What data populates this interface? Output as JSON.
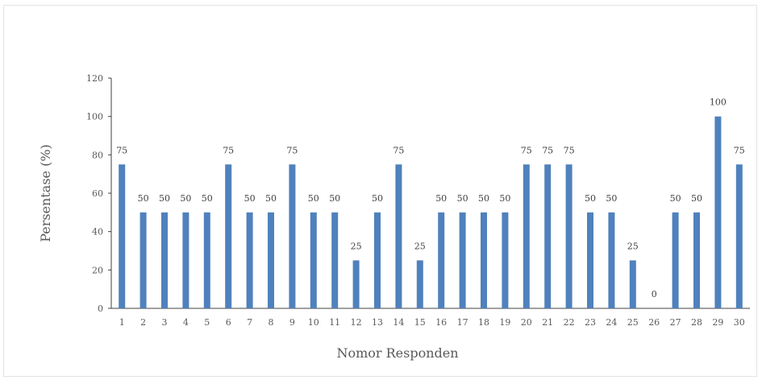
{
  "chart_data": {
    "type": "bar",
    "title": "",
    "xlabel": "Nomor Responden",
    "ylabel": "Persentase (%)",
    "ylim": [
      0,
      120
    ],
    "yticks": [
      "0",
      "20",
      "40",
      "60",
      "80",
      "100",
      "120"
    ],
    "grid": false,
    "legend": "none",
    "bar_color": "#4f81bd",
    "categories": [
      "1",
      "2",
      "3",
      "4",
      "5",
      "6",
      "7",
      "8",
      "9",
      "10",
      "11",
      "12",
      "13",
      "14",
      "15",
      "16",
      "17",
      "18",
      "19",
      "20",
      "21",
      "22",
      "23",
      "24",
      "25",
      "26",
      "27",
      "28",
      "29",
      "30"
    ],
    "values": [
      75,
      50,
      50,
      50,
      50,
      75,
      50,
      50,
      75,
      50,
      50,
      25,
      50,
      75,
      25,
      50,
      50,
      50,
      50,
      75,
      75,
      75,
      50,
      50,
      25,
      0,
      50,
      50,
      100,
      75
    ],
    "data_labels": [
      "75",
      "50",
      "50",
      "50",
      "50",
      "75",
      "50",
      "50",
      "75",
      "50",
      "50",
      "25",
      "50",
      "75",
      "25",
      "50",
      "50",
      "50",
      "50",
      "75",
      "75",
      "75",
      "50",
      "50",
      "25",
      "0",
      "50",
      "50",
      "100",
      "75"
    ]
  }
}
